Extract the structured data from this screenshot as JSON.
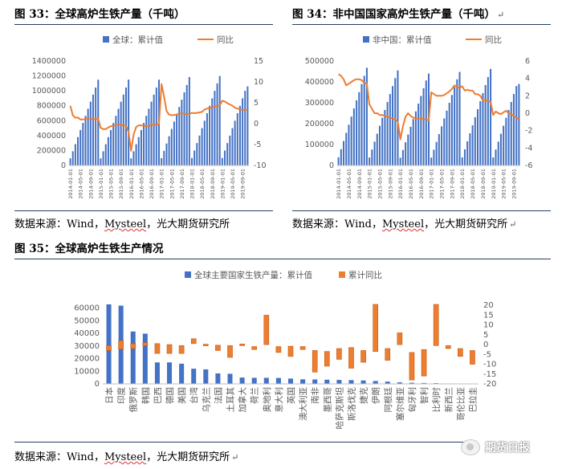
{
  "figures": {
    "fig33_title": "图 33：全球高炉生铁产量（千吨）",
    "fig34_title": "图 34：非中国国家高炉生铁产量（千吨）",
    "fig35_title": "图 35：全球高炉生铁生产情况",
    "para_mark": "↵"
  },
  "sources": {
    "s1_prefix": "数据来源：Wind，",
    "s1_brand": "Mysteel",
    "s1_suffix": "，光大期货研究所",
    "s2_prefix": "数据来源：Wind，",
    "s2_brand": "Mysteel",
    "s2_suffix": "，光大期货研究所",
    "s3_prefix": "数据来源：Wind，",
    "s3_brand": "Mysteel",
    "s3_suffix": "，光大期货研究所"
  },
  "watermark": {
    "icon": "wechat-logo-icon",
    "text": "期货日报"
  },
  "colors": {
    "bar": "#4472c4",
    "line": "#ed7d31",
    "axis": "#bfbfbf",
    "text": "#595959"
  },
  "chart_data": [
    {
      "id": "c33",
      "type": "bar+line",
      "series": [
        {
          "name": "全球：累计值",
          "type": "bar",
          "axis": "left",
          "values": [
            95000,
            190000,
            285000,
            380000,
            475000,
            570000,
            665000,
            760000,
            855000,
            950000,
            1045000,
            1150000,
            95000,
            190000,
            285000,
            380000,
            475000,
            570000,
            665000,
            760000,
            855000,
            950000,
            1045000,
            1150000,
            95000,
            190000,
            285000,
            380000,
            475000,
            570000,
            665000,
            760000,
            855000,
            950000,
            1045000,
            1150000,
            98000,
            196000,
            294000,
            392000,
            490000,
            588000,
            686000,
            784000,
            882000,
            980000,
            1078000,
            1185000,
            100000,
            200000,
            300000,
            400000,
            500000,
            600000,
            700000,
            800000,
            900000,
            1000000,
            1100000,
            1200000,
            100000,
            200000,
            300000,
            400000,
            500000,
            600000,
            700000,
            800000,
            900000,
            1000000,
            1060000
          ]
        },
        {
          "name": "同比",
          "type": "line",
          "axis": "right",
          "values": [
            4.3,
            2.0,
            1.4,
            1.5,
            1.0,
            1.0,
            1.1,
            1.3,
            1.2,
            1.0,
            1.2,
            1.2,
            -1.0,
            -1.3,
            -1.3,
            -0.9,
            -0.6,
            -0.5,
            -0.3,
            -0.3,
            -0.2,
            -0.5,
            -0.5,
            -2.0,
            -6.5,
            -2.5,
            -0.8,
            -0.4,
            -0.4,
            -0.5,
            -0.6,
            -0.6,
            -0.2,
            -0.3,
            -0.2,
            -0.1,
            9.5,
            6.5,
            3.0,
            2.2,
            2.0,
            2.1,
            2.2,
            2.4,
            2.5,
            2.4,
            2.3,
            2.3,
            2.6,
            2.5,
            2.6,
            2.7,
            2.8,
            3.4,
            3.6,
            3.8,
            3.9,
            4.1,
            4.2,
            4.4,
            5.5,
            5.3,
            4.9,
            4.6,
            4.3,
            3.8,
            3.6,
            3.5,
            3.3,
            3.2,
            3.3
          ]
        }
      ],
      "x_labels": [
        "2014-01-01",
        "2014-05-01",
        "2014-09-01",
        "2015-01-01",
        "2015-05-01",
        "2015-09-01",
        "2016-01-01",
        "2016-05-01",
        "2016-09-01",
        "2017-01-01",
        "2017-05-01",
        "2017-09-01",
        "2018-01-01",
        "2018-05-01",
        "2018-09-01",
        "2019-01-01",
        "2019-05-01",
        "2019-09-01"
      ],
      "ylim": [
        0,
        1400000
      ],
      "yticks": [
        "0",
        "200000",
        "400000",
        "600000",
        "800000",
        "1000000",
        "1200000",
        "1400000"
      ],
      "y2lim": [
        -10,
        15
      ],
      "y2ticks": [
        "-10",
        "-5",
        "0",
        "5",
        "10",
        "15"
      ],
      "legend": "top-center"
    },
    {
      "id": "c34",
      "type": "bar+line",
      "series": [
        {
          "name": "非中国：累计值",
          "type": "bar",
          "axis": "left",
          "values": [
            39000,
            78000,
            117000,
            156000,
            195000,
            234000,
            273000,
            312000,
            351000,
            390000,
            429000,
            468000,
            38000,
            76000,
            114000,
            152000,
            190000,
            228000,
            266000,
            304000,
            342000,
            380000,
            418000,
            455000,
            37000,
            74000,
            111000,
            148000,
            185000,
            222000,
            259000,
            296000,
            333000,
            370000,
            407000,
            440000,
            37500,
            75000,
            112500,
            150000,
            187500,
            225000,
            262500,
            300000,
            337500,
            375000,
            412500,
            448000,
            38500,
            77000,
            115500,
            154000,
            192500,
            231000,
            269500,
            308000,
            346500,
            385000,
            423500,
            462000,
            38000,
            76000,
            114000,
            152000,
            190000,
            228000,
            266000,
            304000,
            342000,
            380000,
            390000
          ]
        },
        {
          "name": "同比",
          "type": "line",
          "axis": "right",
          "values": [
            4.5,
            4.3,
            3.9,
            3.2,
            3.4,
            3.6,
            3.8,
            3.9,
            3.9,
            3.8,
            3.5,
            3.4,
            1.0,
            0.5,
            0.0,
            0.0,
            -0.2,
            -0.2,
            -0.3,
            -0.4,
            -0.5,
            -0.6,
            -0.7,
            -1.0,
            -3.0,
            -1.5,
            -0.4,
            0.0,
            -0.3,
            -0.5,
            -0.6,
            -0.6,
            -0.6,
            -0.7,
            -0.7,
            -0.8,
            2.4,
            2.2,
            2.0,
            2.0,
            2.0,
            2.1,
            2.3,
            2.5,
            2.8,
            3.2,
            3.0,
            2.9,
            3.1,
            2.6,
            2.7,
            2.6,
            2.6,
            2.2,
            2.2,
            2.0,
            1.5,
            1.5,
            1.4,
            1.3,
            -0.2,
            0.2,
            0.0,
            -0.1,
            0.1,
            0.3,
            0.0,
            -0.1,
            -0.3,
            -0.5,
            -0.7
          ]
        }
      ],
      "x_labels": [
        "2014-01-01",
        "2014-05-01",
        "2014-09-01",
        "2015-01-01",
        "2015-05-01",
        "2015-09-01",
        "2016-01-01",
        "2016-05-01",
        "2016-09-01",
        "2017-01-01",
        "2017-05-01",
        "2017-09-01",
        "2018-01-01",
        "2018-05-01",
        "2018-09-01",
        "2019-01-01",
        "2019-05-01",
        "2019-09-01"
      ],
      "ylim": [
        0,
        500000
      ],
      "yticks": [
        "0",
        "100000",
        "200000",
        "300000",
        "400000",
        "500000"
      ],
      "y2lim": [
        -6,
        6
      ],
      "y2ticks": [
        "-6",
        "-4",
        "-2",
        "0",
        "2",
        "4",
        "6"
      ],
      "legend": "top-center"
    },
    {
      "id": "c35",
      "type": "bar+floating-bar",
      "categories": [
        "日本",
        "印度",
        "俄罗斯",
        "韩国",
        "巴西",
        "德国",
        "美国",
        "台湾",
        "乌克兰",
        "法国",
        "土耳其",
        "加拿大",
        "荷兰",
        "奥地利",
        "意大利",
        "英国",
        "澳大利亚",
        "南非",
        "墨西哥",
        "哈萨克斯坦",
        "斯洛伐克",
        "捷克",
        "伊朗",
        "阿根廷",
        "塞尔维亚",
        "匈牙利",
        "智利",
        "比利时",
        "新西兰",
        "哥伦比亚",
        "巴拉圭"
      ],
      "series": [
        {
          "name": "全球主要国家生铁产量：累计值",
          "type": "bar",
          "axis": "left",
          "values": [
            63000,
            62000,
            41500,
            39800,
            17000,
            17000,
            16000,
            12000,
            11500,
            8300,
            8000,
            5000,
            4800,
            4800,
            4700,
            4200,
            3600,
            3500,
            3300,
            3100,
            3000,
            2700,
            2300,
            1800,
            1200,
            900,
            700,
            600,
            350,
            250,
            200
          ]
        },
        {
          "name": "累计同比",
          "type": "floating-bar",
          "axis": "right",
          "values": [
            [
              -3.0,
              -0.5
            ],
            [
              -2.3,
              2.0
            ],
            [
              -2.0,
              0.5
            ],
            [
              -0.5,
              1.0
            ],
            [
              -4.5,
              0.5
            ],
            [
              -4.5,
              0.0
            ],
            [
              -4.5,
              -0.5
            ],
            [
              0.5,
              3.0
            ],
            [
              -0.2,
              0.2
            ],
            [
              -3.0,
              -0.3
            ],
            [
              -6.5,
              -0.5
            ],
            [
              -0.3,
              0.3
            ],
            [
              -2.5,
              -1.0
            ],
            [
              15.0,
              0.0
            ],
            [
              -4.0,
              -1.0
            ],
            [
              -6.0,
              -0.8
            ],
            [
              -2.5,
              -1.0
            ],
            [
              -14.0,
              -3.0
            ],
            [
              -11.0,
              -3.5
            ],
            [
              -7.5,
              -2.0
            ],
            [
              -12.0,
              -1.5
            ],
            [
              -9.0,
              -3.0
            ],
            [
              20.5,
              -3.5
            ],
            [
              -8.0,
              -2.0
            ],
            [
              6.0,
              0.0
            ],
            [
              -18.0,
              -4.0
            ],
            [
              -16.0,
              -2.5
            ],
            [
              -0.5,
              20.5
            ],
            [
              -2.0,
              -0.5
            ],
            [
              -6.0,
              -2.0
            ],
            [
              -10.0,
              -3.0
            ]
          ]
        }
      ],
      "ylim": [
        0,
        70000
      ],
      "yticks": [
        "0",
        "10000",
        "20000",
        "30000",
        "40000",
        "50000",
        "60000"
      ],
      "y2lim": [
        -20,
        25
      ],
      "y2ticks": [
        "-20",
        "-15",
        "-10",
        "-5",
        "0",
        "5",
        "10",
        "15",
        "20"
      ],
      "legend": "top-center"
    }
  ]
}
